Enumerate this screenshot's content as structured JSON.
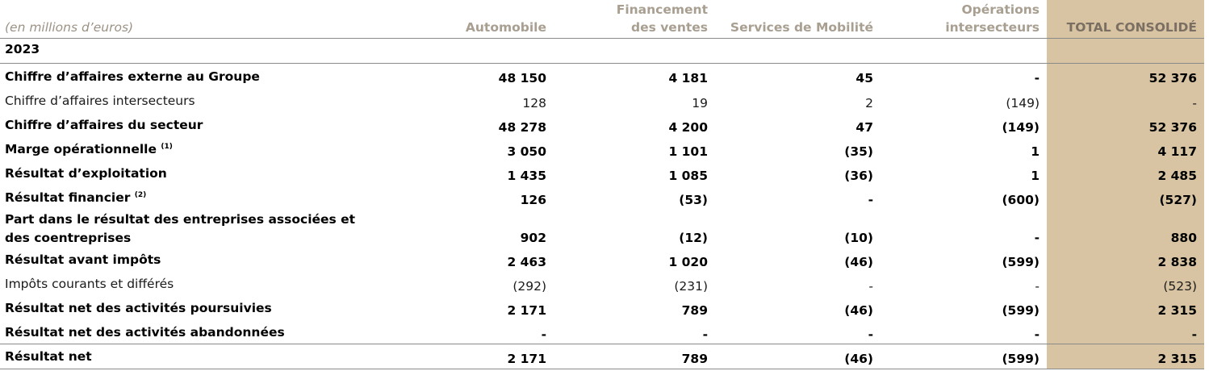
{
  "table": {
    "header": {
      "units": "(en millions d’euros)",
      "col_automobile": "Automobile",
      "col_financement_l1": "Financement",
      "col_financement_l2": "des ventes",
      "col_services": "Services de Mobilité",
      "col_operations_l1": "Opérations",
      "col_operations_l2": "intersecteurs",
      "col_total": "TOTAL CONSOLIDÉ"
    },
    "year": "2023",
    "rows": [
      {
        "label": "Chiffre d’affaires externe au Groupe",
        "note": "",
        "values": [
          "48 150",
          "4 181",
          "45",
          "-",
          "52 376"
        ]
      },
      {
        "label": "Chiffre d’affaires intersecteurs",
        "note": "",
        "values": [
          "128",
          "19",
          "2",
          "(149)",
          "-"
        ]
      },
      {
        "label": "Chiffre d’affaires du secteur",
        "note": "",
        "values": [
          "48 278",
          "4 200",
          "47",
          "(149)",
          "52 376"
        ]
      },
      {
        "label": "Marge opérationnelle",
        "note": "(1)",
        "values": [
          "3 050",
          "1 101",
          "(35)",
          "1",
          "4 117"
        ]
      },
      {
        "label": "Résultat d’exploitation",
        "note": "",
        "values": [
          "1 435",
          "1 085",
          "(36)",
          "1",
          "2 485"
        ]
      },
      {
        "label": "Résultat financier",
        "note": "(2)",
        "values": [
          "126",
          "(53)",
          "-",
          "(600)",
          "(527)"
        ]
      },
      {
        "label_l1": "Part dans le résultat des entreprises associées et",
        "label_l2": "des coentreprises",
        "note": "",
        "values": [
          "902",
          "(12)",
          "(10)",
          "-",
          "880"
        ]
      },
      {
        "label": "Résultat avant impôts",
        "note": "",
        "values": [
          "2 463",
          "1 020",
          "(46)",
          "(599)",
          "2 838"
        ]
      },
      {
        "label": "Impôts courants et différés",
        "note": "",
        "values": [
          "(292)",
          "(231)",
          "-",
          "-",
          "(523)"
        ]
      },
      {
        "label": "Résultat net des activités poursuivies",
        "note": "",
        "values": [
          "2 171",
          "789",
          "(46)",
          "(599)",
          "2 315"
        ]
      },
      {
        "label": "Résultat net des activités abandonnées",
        "note": "",
        "values": [
          "-",
          "-",
          "-",
          "-",
          "-"
        ]
      },
      {
        "label": "Résultat net",
        "note": "",
        "values": [
          "2 171",
          "789",
          "(46)",
          "(599)",
          "2 315"
        ]
      }
    ]
  },
  "colors": {
    "total_band": "#d8c4a2",
    "header_text": "#a89f91",
    "rule": "#8a8a8a"
  }
}
